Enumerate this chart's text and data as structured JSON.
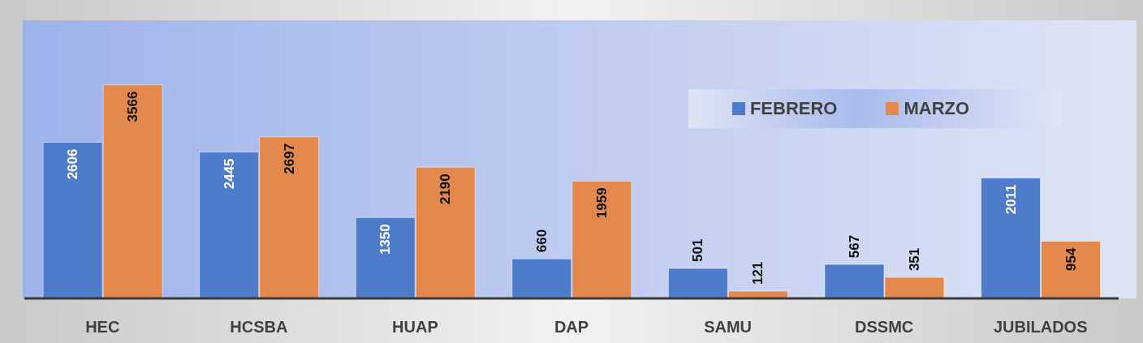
{
  "chart_data": {
    "type": "bar",
    "categories": [
      "HEC",
      "HCSBA",
      "HUAP",
      "DAP",
      "SAMU",
      "DSSMC",
      "JUBILADOS"
    ],
    "series": [
      {
        "name": "FEBRERO",
        "color": "#4f7bcb",
        "values": [
          2606,
          2445,
          1350,
          660,
          501,
          567,
          2011
        ]
      },
      {
        "name": "MARZO",
        "color": "#e4894e",
        "values": [
          3566,
          2697,
          2190,
          1959,
          121,
          351,
          954
        ]
      }
    ],
    "data_labels": true,
    "legend": "top right"
  }
}
